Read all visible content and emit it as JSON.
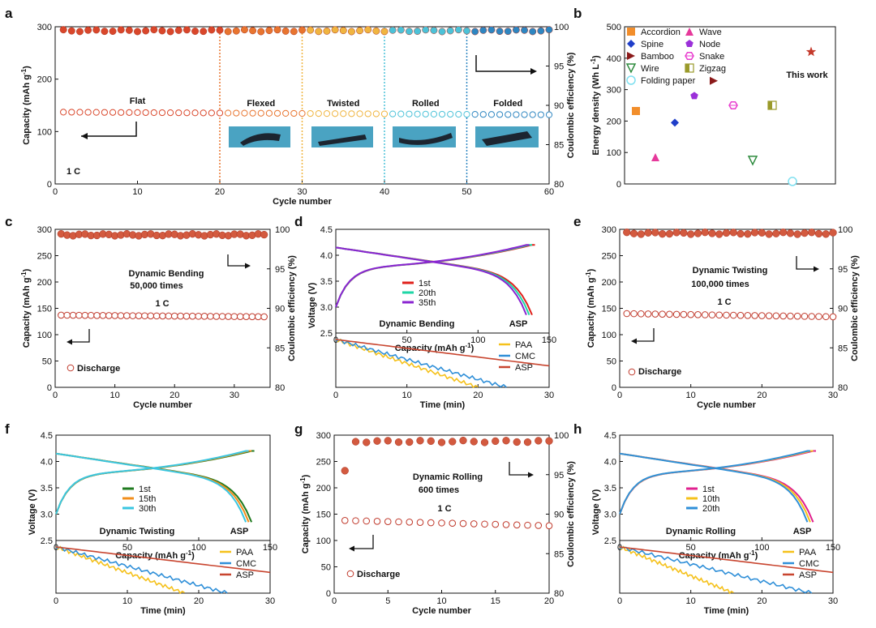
{
  "colors": {
    "discharge": "#c0392b",
    "ce": "#d35a3f",
    "accent": "#c4392b"
  },
  "panel_labels": [
    "a",
    "b",
    "c",
    "d",
    "e",
    "f",
    "g",
    "h"
  ],
  "chart_data": [
    {
      "id": "a",
      "type": "scatter",
      "xlabel": "Cycle number",
      "ylabel": "Capacity (mAh g-1)",
      "y2label": "Coulombic efficiency (%)",
      "xlim": [
        0,
        60
      ],
      "ylim": [
        0,
        300
      ],
      "y2lim": [
        80,
        100
      ],
      "xticks": [
        "0",
        "10",
        "20",
        "30",
        "40",
        "50",
        "60"
      ],
      "yticks": [
        "0",
        "100",
        "200",
        "300"
      ],
      "y2ticks": [
        "80",
        "85",
        "90",
        "95",
        "100"
      ],
      "capacity": {
        "x_start": 1,
        "x_end": 60,
        "start": 137,
        "end": 132
      },
      "ce": {
        "x_start": 1,
        "x_end": 60,
        "value": 99.5
      },
      "segments": [
        {
          "label": "Flat",
          "from": 0,
          "to": 20,
          "color": "#d9472b"
        },
        {
          "label": "Flexed",
          "from": 20,
          "to": 30,
          "color": "#e8752f"
        },
        {
          "label": "Twisted",
          "from": 30,
          "to": 40,
          "color": "#f0b540"
        },
        {
          "label": "Rolled",
          "from": 40,
          "to": 50,
          "color": "#4cc2d8"
        },
        {
          "label": "Folded",
          "from": 50,
          "to": 60,
          "color": "#2e86c1"
        }
      ],
      "rate_label": "1 C"
    },
    {
      "id": "b",
      "type": "scatter",
      "ylabel": "Energy density (Wh L-1)",
      "ylim": [
        0,
        500
      ],
      "yticks": [
        "0",
        "100",
        "200",
        "300",
        "400",
        "500"
      ],
      "legend": [
        {
          "name": "Accordion",
          "color": "#f28e2b",
          "shape": "square"
        },
        {
          "name": "Wave",
          "color": "#e6399b",
          "shape": "triangle-up"
        },
        {
          "name": "Spine",
          "color": "#1f3ec9",
          "shape": "diamond"
        },
        {
          "name": "Node",
          "color": "#9b30d9",
          "shape": "pentagon"
        },
        {
          "name": "Bamboo",
          "color": "#8b1a1a",
          "shape": "triangle-right"
        },
        {
          "name": "Snake",
          "color": "#e83ecf",
          "shape": "hexagon-open"
        },
        {
          "name": "Wire",
          "color": "#2e8b3e",
          "shape": "triangle-down"
        },
        {
          "name": "Zigzag",
          "color": "#9a9a2a",
          "shape": "square-half"
        },
        {
          "name": "Folding paper",
          "color": "#7fe0f0",
          "shape": "circle-open"
        }
      ],
      "points": [
        {
          "name": "Accordion",
          "value": 232
        },
        {
          "name": "Wave",
          "value": 85
        },
        {
          "name": "Spine",
          "value": 195
        },
        {
          "name": "Node",
          "value": 280
        },
        {
          "name": "Bamboo",
          "value": 328
        },
        {
          "name": "Snake",
          "value": 250
        },
        {
          "name": "Wire",
          "value": 75
        },
        {
          "name": "Zigzag",
          "value": 250
        },
        {
          "name": "Folding paper",
          "value": 8
        },
        {
          "name": "This work",
          "value": 420
        }
      ],
      "this_work_label": "This work"
    },
    {
      "id": "c",
      "type": "scatter",
      "xlabel": "Cycle number",
      "ylabel": "Capacity (mAh g-1)",
      "y2label": "Coulombic efficiency (%)",
      "xlim": [
        0,
        36
      ],
      "ylim": [
        0,
        300
      ],
      "y2lim": [
        80,
        100
      ],
      "xticks": [
        "0",
        "10",
        "20",
        "30"
      ],
      "yticks": [
        "0",
        "50",
        "100",
        "150",
        "200",
        "250",
        "300"
      ],
      "y2ticks": [
        "80",
        "85",
        "90",
        "95",
        "100"
      ],
      "capacity": {
        "x_start": 1,
        "x_end": 35,
        "start": 137,
        "end": 134
      },
      "ce": {
        "x_start": 1,
        "x_end": 35,
        "value": 99.3
      },
      "title": "Dynamic Bending",
      "subtitle": "50,000 times",
      "rate_label": "1 C",
      "legend_label": "Discharge"
    },
    {
      "id": "d",
      "type": "line",
      "upper": {
        "xlabel": "Capacity (mAh g-1)",
        "ylabel": "Voltage (V)",
        "xlim": [
          0,
          150
        ],
        "ylim": [
          2.5,
          4.5
        ],
        "xticks": [
          "0",
          "50",
          "100",
          "150"
        ],
        "yticks": [
          "2.5",
          "3.0",
          "3.5",
          "4.0",
          "4.5"
        ],
        "series": [
          {
            "name": "1st",
            "color": "#e0201b"
          },
          {
            "name": "20th",
            "color": "#1fd6a6"
          },
          {
            "name": "35th",
            "color": "#8a24d0"
          }
        ],
        "title": "Dynamic Bending",
        "tag": "ASP",
        "max_capacity": 138
      },
      "lower": {
        "xlabel": "Time (min)",
        "xlim": [
          0,
          30
        ],
        "xticks": [
          "0",
          "10",
          "20",
          "30"
        ],
        "series": [
          {
            "name": "PAA",
            "color": "#f5c11b",
            "end": 20
          },
          {
            "name": "CMC",
            "color": "#2f8fd8",
            "end": 24
          },
          {
            "name": "ASP",
            "color": "#c8452f",
            "end": 30
          }
        ]
      }
    },
    {
      "id": "e",
      "type": "scatter",
      "xlabel": "Cycle number",
      "ylabel": "Capacity (mAh g-1)",
      "y2label": "Coulombic efficiency (%)",
      "xlim": [
        0,
        30
      ],
      "ylim": [
        0,
        300
      ],
      "y2lim": [
        80,
        100
      ],
      "xticks": [
        "0",
        "10",
        "20",
        "30"
      ],
      "yticks": [
        "0",
        "50",
        "100",
        "150",
        "200",
        "250",
        "300"
      ],
      "y2ticks": [
        "80",
        "85",
        "90",
        "95",
        "100"
      ],
      "capacity": {
        "x_start": 1,
        "x_end": 30,
        "start": 140,
        "end": 134
      },
      "ce": {
        "x_start": 1,
        "x_end": 30,
        "value": 99.5
      },
      "title": "Dynamic Twisting",
      "subtitle": "100,000 times",
      "rate_label": "1 C",
      "legend_label": "Discharge"
    },
    {
      "id": "f",
      "type": "line",
      "upper": {
        "xlabel": "Capacity (mAh g-1)",
        "ylabel": "Voltage (V)",
        "xlim": [
          0,
          150
        ],
        "ylim": [
          2.5,
          4.5
        ],
        "xticks": [
          "0",
          "50",
          "100",
          "150"
        ],
        "yticks": [
          "2.5",
          "3.0",
          "3.5",
          "4.0",
          "4.5"
        ],
        "series": [
          {
            "name": "1st",
            "color": "#1f7a1f"
          },
          {
            "name": "15th",
            "color": "#f28e1b"
          },
          {
            "name": "30th",
            "color": "#39c6e0"
          }
        ],
        "title": "Dynamic Twisting",
        "tag": "ASP",
        "max_capacity": 137
      },
      "lower": {
        "xlabel": "Time (min)",
        "xlim": [
          0,
          30
        ],
        "xticks": [
          "0",
          "10",
          "20",
          "30"
        ],
        "series": [
          {
            "name": "PAA",
            "color": "#f5c11b",
            "end": 18
          },
          {
            "name": "CMC",
            "color": "#2f8fd8",
            "end": 24
          },
          {
            "name": "ASP",
            "color": "#c8452f",
            "end": 30
          }
        ]
      }
    },
    {
      "id": "g",
      "type": "scatter",
      "xlabel": "Cycle number",
      "ylabel": "Capacity (mAh g-1)",
      "y2label": "Coulombic efficiency (%)",
      "xlim": [
        0,
        20
      ],
      "ylim": [
        0,
        300
      ],
      "y2lim": [
        80,
        100
      ],
      "xticks": [
        "0",
        "5",
        "10",
        "15",
        "20"
      ],
      "yticks": [
        "0",
        "50",
        "100",
        "150",
        "200",
        "250",
        "300"
      ],
      "y2ticks": [
        "80",
        "85",
        "90",
        "95",
        "100"
      ],
      "capacity": {
        "x_start": 1,
        "x_end": 20,
        "start": 138,
        "end": 128
      },
      "ce": {
        "x_start": 1,
        "x_end": 20,
        "value": 99.2,
        "first": 95.5
      },
      "title": "Dynamic Rolling",
      "subtitle": "600 times",
      "rate_label": "1 C",
      "legend_label": "Discharge"
    },
    {
      "id": "h",
      "type": "line",
      "upper": {
        "xlabel": "Capacity (mAh g-1)",
        "ylabel": "Voltage (V)",
        "xlim": [
          0,
          150
        ],
        "ylim": [
          2.5,
          4.5
        ],
        "xticks": [
          "0",
          "50",
          "100",
          "150"
        ],
        "yticks": [
          "2.5",
          "3.0",
          "3.5",
          "4.0",
          "4.5"
        ],
        "series": [
          {
            "name": "1st",
            "color": "#e0208f"
          },
          {
            "name": "10th",
            "color": "#f5c11b"
          },
          {
            "name": "20th",
            "color": "#2f8fd8"
          }
        ],
        "title": "Dynamic Rolling",
        "tag": "ASP",
        "max_capacity": 136
      },
      "lower": {
        "xlabel": "Time (min)",
        "xlim": [
          0,
          30
        ],
        "xticks": [
          "0",
          "10",
          "20",
          "30"
        ],
        "series": [
          {
            "name": "PAA",
            "color": "#f5c11b",
            "end": 16
          },
          {
            "name": "CMC",
            "color": "#2f8fd8",
            "end": 27
          },
          {
            "name": "ASP",
            "color": "#c8452f",
            "end": 30
          }
        ]
      }
    }
  ]
}
